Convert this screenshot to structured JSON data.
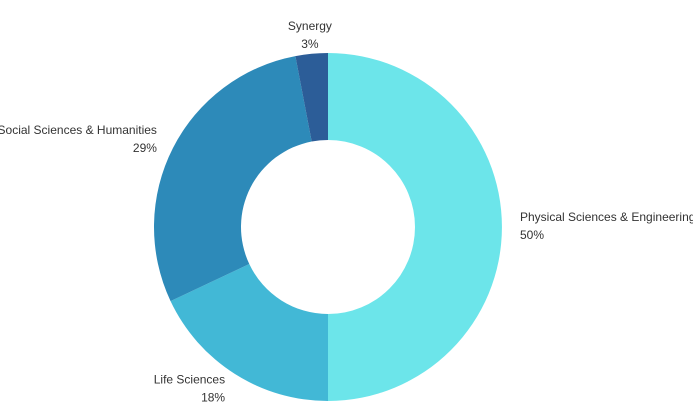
{
  "chart_data": {
    "type": "donut",
    "categories": [
      "Physical Sciences & Engineering",
      "Life Sciences",
      "Social Sciences & Humanities",
      "Synergy"
    ],
    "values": [
      50,
      18,
      29,
      3
    ],
    "value_labels": [
      "50%",
      "18%",
      "29%",
      "3%"
    ],
    "colors": [
      "#6ce5ea",
      "#42b8d6",
      "#2d8ab9",
      "#2c5d98"
    ]
  }
}
